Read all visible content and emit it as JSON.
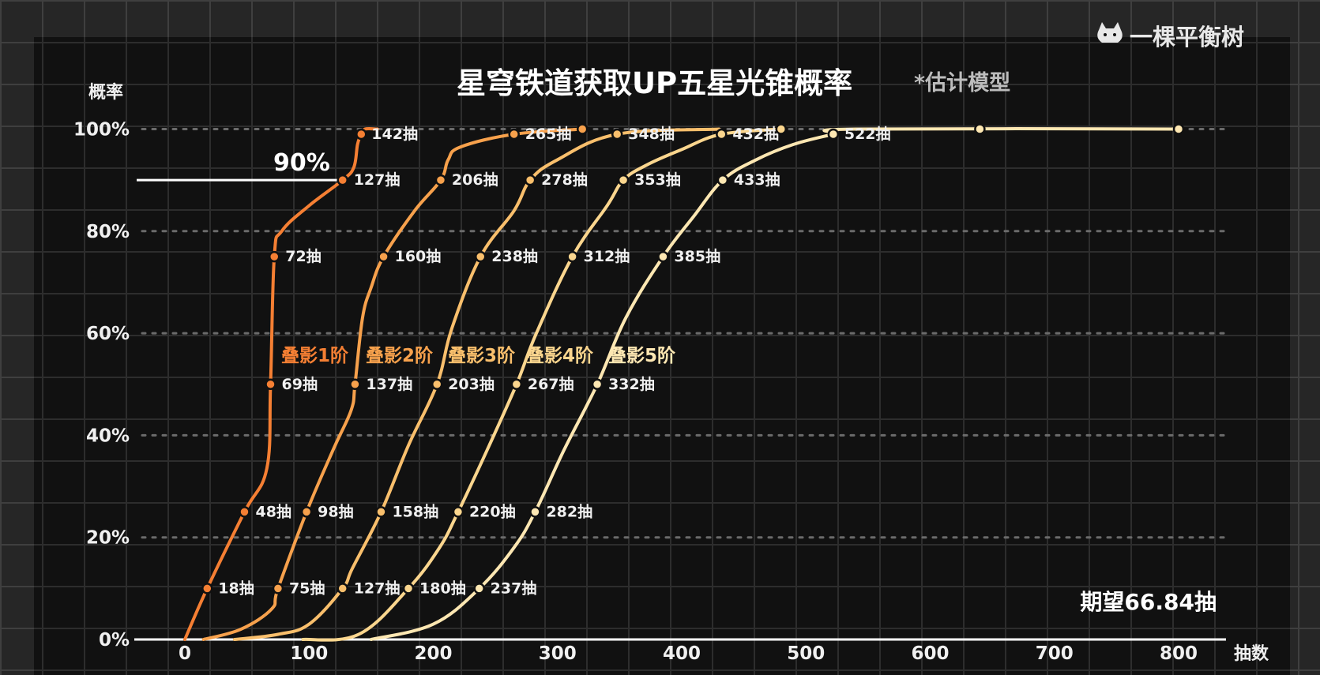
{
  "watermark": {
    "text": "一棵平衡树",
    "icon": "cat-face-icon"
  },
  "colors": {
    "background": "#262626",
    "panel": "#111111",
    "series": [
      "#f57f33",
      "#f7a14c",
      "#f9bf6c",
      "#fbd68e",
      "#fde7b2"
    ]
  },
  "chart_data": {
    "type": "line",
    "title": "星穹铁道获取UP五星光锥概率",
    "subtitle": "*估计模型",
    "xlabel": "抽数",
    "ylabel": "概率",
    "xlim": [
      -40,
      800
    ],
    "ylim": [
      0,
      100
    ],
    "x_ticks": [
      "0",
      "100",
      "200",
      "300",
      "400",
      "500",
      "600",
      "700",
      "800"
    ],
    "y_ticks": [
      "0%",
      "20%",
      "40%",
      "60%",
      "80%",
      "100%"
    ],
    "grid": true,
    "reference_line": {
      "y": 90,
      "label": "90%"
    },
    "annotation": "期望66.84抽",
    "series": [
      {
        "name": "叠影1阶",
        "curve": [
          [
            0,
            0
          ],
          [
            18,
            10
          ],
          [
            48,
            25
          ],
          [
            66,
            33.5
          ],
          [
            69,
            50
          ],
          [
            72,
            75
          ],
          [
            78,
            80
          ],
          [
            100,
            85
          ],
          [
            127,
            90
          ],
          [
            136,
            92.5
          ],
          [
            139,
            97
          ],
          [
            142,
            99
          ],
          [
            145,
            100
          ],
          [
            155,
            100
          ]
        ],
        "points": [
          {
            "x": 18,
            "y": 10,
            "label": "18抽"
          },
          {
            "x": 48,
            "y": 25,
            "label": "48抽"
          },
          {
            "x": 69,
            "y": 50,
            "label": "69抽"
          },
          {
            "x": 72,
            "y": 75,
            "label": "72抽"
          },
          {
            "x": 127,
            "y": 90,
            "label": "127抽"
          },
          {
            "x": 142,
            "y": 99,
            "label": "142抽"
          }
        ]
      },
      {
        "name": "叠影2阶",
        "curve": [
          [
            15,
            0
          ],
          [
            45,
            2
          ],
          [
            70,
            6
          ],
          [
            75,
            10
          ],
          [
            98,
            25
          ],
          [
            120,
            37.5
          ],
          [
            134,
            45
          ],
          [
            137,
            50
          ],
          [
            143,
            63
          ],
          [
            150,
            69
          ],
          [
            160,
            75
          ],
          [
            185,
            84
          ],
          [
            206,
            90
          ],
          [
            212,
            94
          ],
          [
            222,
            96.5
          ],
          [
            265,
            99
          ],
          [
            320,
            100
          ]
        ],
        "points": [
          {
            "x": 75,
            "y": 10,
            "label": "75抽"
          },
          {
            "x": 98,
            "y": 25,
            "label": "98抽"
          },
          {
            "x": 137,
            "y": 50,
            "label": "137抽"
          },
          {
            "x": 160,
            "y": 75,
            "label": "160抽"
          },
          {
            "x": 206,
            "y": 90,
            "label": "206抽"
          },
          {
            "x": 265,
            "y": 99,
            "label": "265抽"
          },
          {
            "x": 320,
            "y": 100
          }
        ]
      },
      {
        "name": "叠影3阶",
        "curve": [
          [
            40,
            0
          ],
          [
            75,
            1
          ],
          [
            100,
            3
          ],
          [
            127,
            10
          ],
          [
            135,
            14
          ],
          [
            158,
            25
          ],
          [
            180,
            38
          ],
          [
            203,
            50
          ],
          [
            215,
            61
          ],
          [
            238,
            75
          ],
          [
            265,
            84
          ],
          [
            278,
            90
          ],
          [
            300,
            94
          ],
          [
            348,
            99
          ],
          [
            430,
            100
          ]
        ],
        "points": [
          {
            "x": 127,
            "y": 10,
            "label": "127抽"
          },
          {
            "x": 158,
            "y": 25,
            "label": "158抽"
          },
          {
            "x": 203,
            "y": 50,
            "label": "203抽"
          },
          {
            "x": 238,
            "y": 75,
            "label": "238抽"
          },
          {
            "x": 278,
            "y": 90,
            "label": "278抽"
          },
          {
            "x": 348,
            "y": 99,
            "label": "348抽"
          }
        ]
      },
      {
        "name": "叠影4阶",
        "curve": [
          [
            95,
            0
          ],
          [
            140,
            1
          ],
          [
            180,
            10
          ],
          [
            205,
            18
          ],
          [
            220,
            25
          ],
          [
            245,
            38
          ],
          [
            267,
            50
          ],
          [
            283,
            60
          ],
          [
            312,
            75
          ],
          [
            340,
            85
          ],
          [
            353,
            90
          ],
          [
            372,
            93
          ],
          [
            400,
            96
          ],
          [
            432,
            99
          ],
          [
            480,
            100
          ]
        ],
        "points": [
          {
            "x": 180,
            "y": 10,
            "label": "180抽"
          },
          {
            "x": 220,
            "y": 25,
            "label": "220抽"
          },
          {
            "x": 267,
            "y": 50,
            "label": "267抽"
          },
          {
            "x": 312,
            "y": 75,
            "label": "312抽"
          },
          {
            "x": 353,
            "y": 90,
            "label": "353抽"
          },
          {
            "x": 432,
            "y": 99,
            "label": "432抽"
          },
          {
            "x": 480,
            "y": 100
          }
        ]
      },
      {
        "name": "叠影5阶",
        "curve": [
          [
            150,
            0
          ],
          [
            200,
            3
          ],
          [
            237,
            10
          ],
          [
            265,
            18
          ],
          [
            282,
            25
          ],
          [
            305,
            37
          ],
          [
            332,
            50
          ],
          [
            355,
            63
          ],
          [
            385,
            75
          ],
          [
            410,
            83
          ],
          [
            433,
            90
          ],
          [
            460,
            94
          ],
          [
            490,
            97
          ],
          [
            522,
            99
          ],
          [
            540,
            100
          ],
          [
            800,
            100
          ]
        ],
        "points": [
          {
            "x": 237,
            "y": 10,
            "label": "237抽"
          },
          {
            "x": 282,
            "y": 25,
            "label": "282抽"
          },
          {
            "x": 332,
            "y": 50,
            "label": "332抽"
          },
          {
            "x": 385,
            "y": 75,
            "label": "385抽"
          },
          {
            "x": 433,
            "y": 90,
            "label": "433抽"
          },
          {
            "x": 522,
            "y": 99,
            "label": "522抽"
          },
          {
            "x": 640,
            "y": 100
          },
          {
            "x": 800,
            "y": 100
          }
        ]
      }
    ]
  }
}
